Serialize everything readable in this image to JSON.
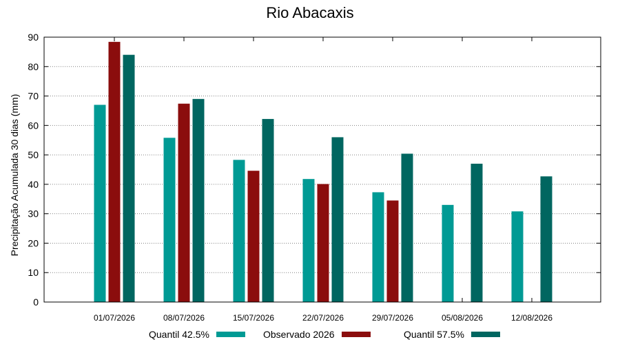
{
  "chart_data": {
    "type": "bar",
    "title": "Rio Abacaxis",
    "ylabel": "Precipitação Acumulada 30 dias (mm)",
    "xlabel": "",
    "ylim": [
      0,
      90
    ],
    "yticks": [
      0,
      10,
      20,
      30,
      40,
      50,
      60,
      70,
      80,
      90
    ],
    "grid": true,
    "legend_position": "bottom",
    "categories": [
      "01/07/2026",
      "08/07/2026",
      "15/07/2026",
      "22/07/2026",
      "29/07/2026",
      "05/08/2026",
      "12/08/2026"
    ],
    "series": [
      {
        "name": "Quantil 42.5%",
        "color": "#009a94",
        "values": [
          67.0,
          55.8,
          48.3,
          41.8,
          37.3,
          33.0,
          30.8
        ]
      },
      {
        "name": "Observado 2026",
        "color": "#8b0d0d",
        "values": [
          88.4,
          67.4,
          44.6,
          40.1,
          34.5,
          null,
          null
        ]
      },
      {
        "name": "Quantil 57.5%",
        "color": "#006660",
        "values": [
          84.0,
          69.0,
          62.2,
          56.0,
          50.4,
          47.0,
          42.7
        ]
      }
    ]
  }
}
